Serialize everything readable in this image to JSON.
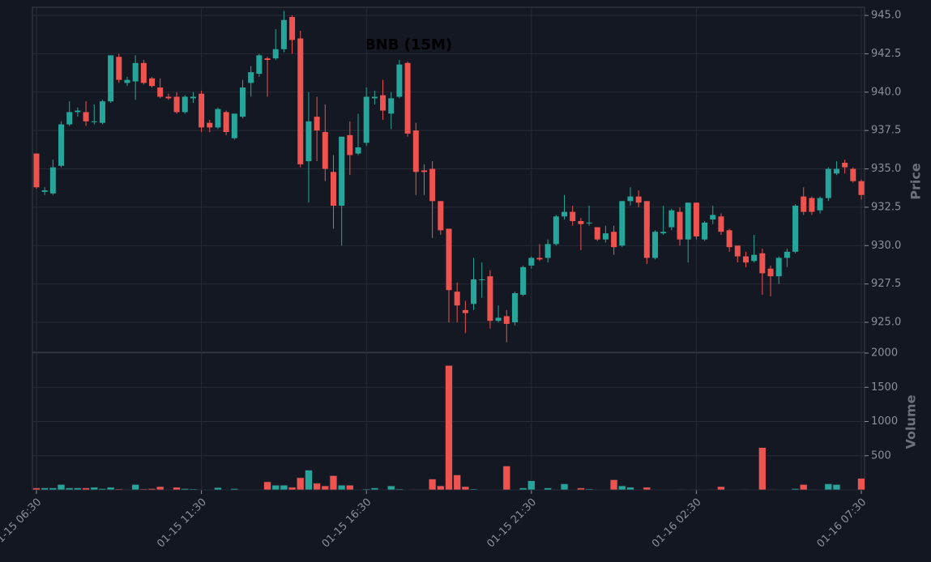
{
  "chart_data": [
    {
      "type": "candlestick",
      "title": "BNB (15M)",
      "ylabel": "Price",
      "categories": [
        "01-15 06:30",
        null,
        null,
        null,
        null,
        null,
        null,
        null,
        null,
        null,
        null,
        null,
        null,
        null,
        null,
        null,
        null,
        null,
        null,
        null,
        "01-15 11:30",
        null,
        null,
        null,
        null,
        null,
        null,
        null,
        null,
        null,
        null,
        null,
        null,
        null,
        null,
        null,
        null,
        null,
        null,
        null,
        "01-15 16:30",
        null,
        null,
        null,
        null,
        null,
        null,
        null,
        null,
        null,
        null,
        null,
        null,
        null,
        null,
        null,
        null,
        null,
        null,
        null,
        "01-15 21:30",
        null,
        null,
        null,
        null,
        null,
        null,
        null,
        null,
        null,
        null,
        null,
        null,
        null,
        null,
        null,
        null,
        null,
        null,
        null,
        "01-16 02:30",
        null,
        null,
        null,
        null,
        null,
        null,
        null,
        null,
        null,
        null,
        null,
        null,
        null,
        null,
        null,
        null,
        null,
        null,
        null,
        "01-16 07:30"
      ],
      "open": [
        936.0,
        933.5,
        933.4,
        935.2,
        937.9,
        938.7,
        938.7,
        938.1,
        938.0,
        939.4,
        942.3,
        940.6,
        940.7,
        941.9,
        940.9,
        940.3,
        939.7,
        939.7,
        938.7,
        939.6,
        939.9,
        938.0,
        937.7,
        938.7,
        937.0,
        938.4,
        940.6,
        941.2,
        942.2,
        942.2,
        942.8,
        944.9,
        943.5,
        935.5,
        938.4,
        937.4,
        934.8,
        932.6,
        937.2,
        936.0,
        936.7,
        939.6,
        939.8,
        938.6,
        939.7,
        941.9,
        937.5,
        934.9,
        935.0,
        932.9,
        931.1,
        927.0,
        925.8,
        926.2,
        927.8,
        928.0,
        925.1,
        925.4,
        925.0,
        926.8,
        928.7,
        929.2,
        929.2,
        930.1,
        931.9,
        932.2,
        931.6,
        931.5,
        931.2,
        930.4,
        930.9,
        930.0,
        932.9,
        933.2,
        932.9,
        929.2,
        930.8,
        931.2,
        932.2,
        930.4,
        932.8,
        930.4,
        931.7,
        931.9,
        931.0,
        930.0,
        929.3,
        929.0,
        929.5,
        928.5,
        928.0,
        929.2,
        929.6,
        933.2,
        933.1,
        932.3,
        933.1,
        934.7,
        935.4,
        935.0,
        934.2
      ],
      "high": [
        936.0,
        933.8,
        935.6,
        938.1,
        939.4,
        939.0,
        939.4,
        939.2,
        939.5,
        942.4,
        942.5,
        941.0,
        942.4,
        942.1,
        941.0,
        940.9,
        939.9,
        940.0,
        939.8,
        940.0,
        940.1,
        938.2,
        939.0,
        938.8,
        938.6,
        940.8,
        941.7,
        942.5,
        942.3,
        944.1,
        945.3,
        945.0,
        944.0,
        940.0,
        939.7,
        939.2,
        935.9,
        937.1,
        938.1,
        938.6,
        940.3,
        940.1,
        940.8,
        940.0,
        942.1,
        942.0,
        938.0,
        935.3,
        935.5,
        932.9,
        931.1,
        927.6,
        926.4,
        929.2,
        928.9,
        928.4,
        926.1,
        925.8,
        927.0,
        928.7,
        929.3,
        930.1,
        930.4,
        932.0,
        933.3,
        932.6,
        931.8,
        932.6,
        931.2,
        931.3,
        931.3,
        932.9,
        933.8,
        933.6,
        932.9,
        931.0,
        932.6,
        932.4,
        932.5,
        932.8,
        932.8,
        931.6,
        932.6,
        932.1,
        931.1,
        930.0,
        929.6,
        930.7,
        929.8,
        928.7,
        929.3,
        929.8,
        932.7,
        933.8,
        933.2,
        933.2,
        935.1,
        935.5,
        935.6,
        935.1,
        934.3
      ],
      "low": [
        933.7,
        933.3,
        933.3,
        935.1,
        937.8,
        938.4,
        937.8,
        937.9,
        937.9,
        939.3,
        940.6,
        940.4,
        939.5,
        940.5,
        940.3,
        939.6,
        939.5,
        938.6,
        938.6,
        939.3,
        937.4,
        937.4,
        937.6,
        937.2,
        936.9,
        938.3,
        939.7,
        941.0,
        939.7,
        942.1,
        942.6,
        942.5,
        935.1,
        932.8,
        935.5,
        934.2,
        931.1,
        930.0,
        934.6,
        935.9,
        936.5,
        939.2,
        938.2,
        937.6,
        939.6,
        937.1,
        933.3,
        933.3,
        930.5,
        930.7,
        925.0,
        925.0,
        924.3,
        925.8,
        926.6,
        924.6,
        925.0,
        923.7,
        924.8,
        926.7,
        928.5,
        929.0,
        928.9,
        930.0,
        931.7,
        931.3,
        929.7,
        931.3,
        930.3,
        930.2,
        929.4,
        929.9,
        932.6,
        932.5,
        928.8,
        929.1,
        930.7,
        931.0,
        930.0,
        928.9,
        930.4,
        930.3,
        931.4,
        930.7,
        929.6,
        928.9,
        928.6,
        928.9,
        926.8,
        926.7,
        927.5,
        928.6,
        929.5,
        932.0,
        932.0,
        932.1,
        932.9,
        934.6,
        934.7,
        934.1,
        933.0
      ],
      "close": [
        933.8,
        933.6,
        935.1,
        937.9,
        938.7,
        938.8,
        938.1,
        938.1,
        939.4,
        942.4,
        940.8,
        940.8,
        941.9,
        940.6,
        940.4,
        939.7,
        939.6,
        938.7,
        939.7,
        939.7,
        937.7,
        937.7,
        938.9,
        937.4,
        938.6,
        940.3,
        941.3,
        942.4,
        942.1,
        942.8,
        944.7,
        943.4,
        935.3,
        938.1,
        937.5,
        935.0,
        932.6,
        937.1,
        935.9,
        936.4,
        939.7,
        939.7,
        938.8,
        939.6,
        941.8,
        937.3,
        934.8,
        934.8,
        932.9,
        931.0,
        927.1,
        926.1,
        925.6,
        927.8,
        927.8,
        925.1,
        925.3,
        924.9,
        926.9,
        928.6,
        929.2,
        929.1,
        930.1,
        931.9,
        932.2,
        931.6,
        931.4,
        931.5,
        930.4,
        930.8,
        929.9,
        932.9,
        933.2,
        932.8,
        929.2,
        930.9,
        930.9,
        932.3,
        930.4,
        932.8,
        930.6,
        931.5,
        932.0,
        930.9,
        929.9,
        929.3,
        928.9,
        929.4,
        928.2,
        928.0,
        929.2,
        929.6,
        932.6,
        932.2,
        932.2,
        933.1,
        935.0,
        935.0,
        935.1,
        934.2,
        933.3
      ],
      "up_color": "#26a69a",
      "down_color": "#ef5350",
      "ylim": [
        923.05,
        945.53
      ],
      "yticks": [
        {
          "value": 925.0,
          "label": "925.0"
        },
        {
          "value": 927.5,
          "label": "927.5"
        },
        {
          "value": 930.0,
          "label": "930.0"
        },
        {
          "value": 932.5,
          "label": "932.5"
        },
        {
          "value": 935.0,
          "label": "935.0"
        },
        {
          "value": 937.5,
          "label": "937.5"
        },
        {
          "value": 940.0,
          "label": "940.0"
        },
        {
          "value": 942.5,
          "label": "942.5"
        },
        {
          "value": 945.0,
          "label": "945.0"
        }
      ],
      "grid": true
    },
    {
      "type": "bar",
      "ylabel": "Volume",
      "values": [
        30,
        30,
        30,
        80,
        30,
        30,
        30,
        40,
        20,
        40,
        15,
        10,
        80,
        15,
        20,
        50,
        5,
        40,
        20,
        15,
        5,
        5,
        35,
        5,
        20,
        5,
        5,
        5,
        120,
        70,
        70,
        40,
        180,
        290,
        100,
        60,
        210,
        70,
        70,
        5,
        15,
        30,
        5,
        60,
        15,
        5,
        10,
        10,
        160,
        60,
        1820,
        220,
        50,
        15,
        5,
        5,
        5,
        350,
        5,
        30,
        135,
        5,
        30,
        10,
        90,
        5,
        30,
        15,
        5,
        5,
        150,
        60,
        40,
        5,
        40,
        5,
        5,
        5,
        10,
        5,
        10,
        5,
        10,
        50,
        5,
        5,
        10,
        5,
        620,
        10,
        5,
        5,
        20,
        80,
        10,
        5,
        90,
        80,
        5,
        5,
        170
      ],
      "ylim": [
        0,
        2000
      ],
      "yticks": [
        500,
        1000,
        1500,
        2000
      ]
    }
  ]
}
